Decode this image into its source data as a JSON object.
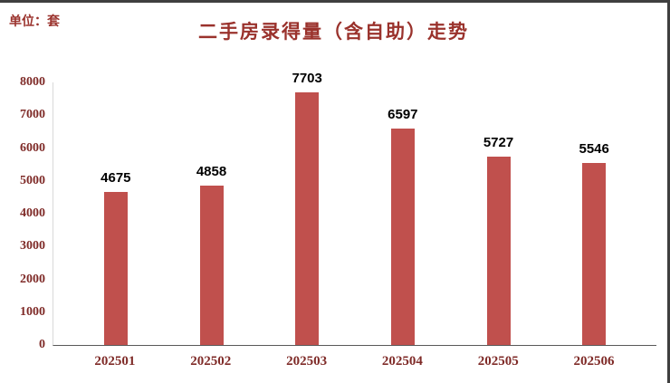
{
  "chart_data": {
    "type": "bar",
    "title": "二手房录得量（含自助）走势",
    "unit_label": "单位：套",
    "categories": [
      "202501",
      "202502",
      "202503",
      "202504",
      "202505",
      "202506"
    ],
    "values": [
      4675,
      4858,
      7703,
      6597,
      5727,
      5546
    ],
    "ylim": [
      0,
      8000
    ],
    "yticks": [
      0,
      1000,
      2000,
      3000,
      4000,
      5000,
      6000,
      7000,
      8000
    ],
    "grid": false,
    "legend": "none",
    "colors": {
      "bar": "#C0504D",
      "title": "#9A322C",
      "axis_labels": "#7F2B28",
      "value_labels": "#000000",
      "axis_line": "#595959"
    }
  }
}
